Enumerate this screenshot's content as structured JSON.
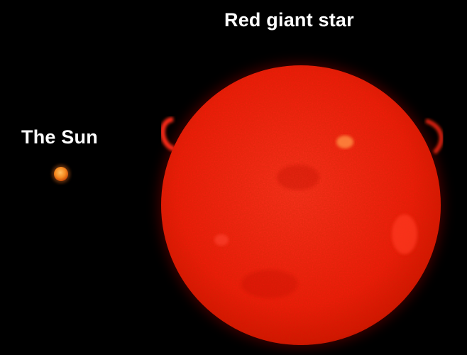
{
  "labels": {
    "red_giant": "Red giant star",
    "sun": "The Sun"
  },
  "colors": {
    "background": "#000000",
    "giant_core": "#ff2a1a",
    "giant_edge": "#c81000",
    "sun_core": "#ffb040",
    "sun_edge": "#d85a10",
    "text": "#ffffff"
  }
}
